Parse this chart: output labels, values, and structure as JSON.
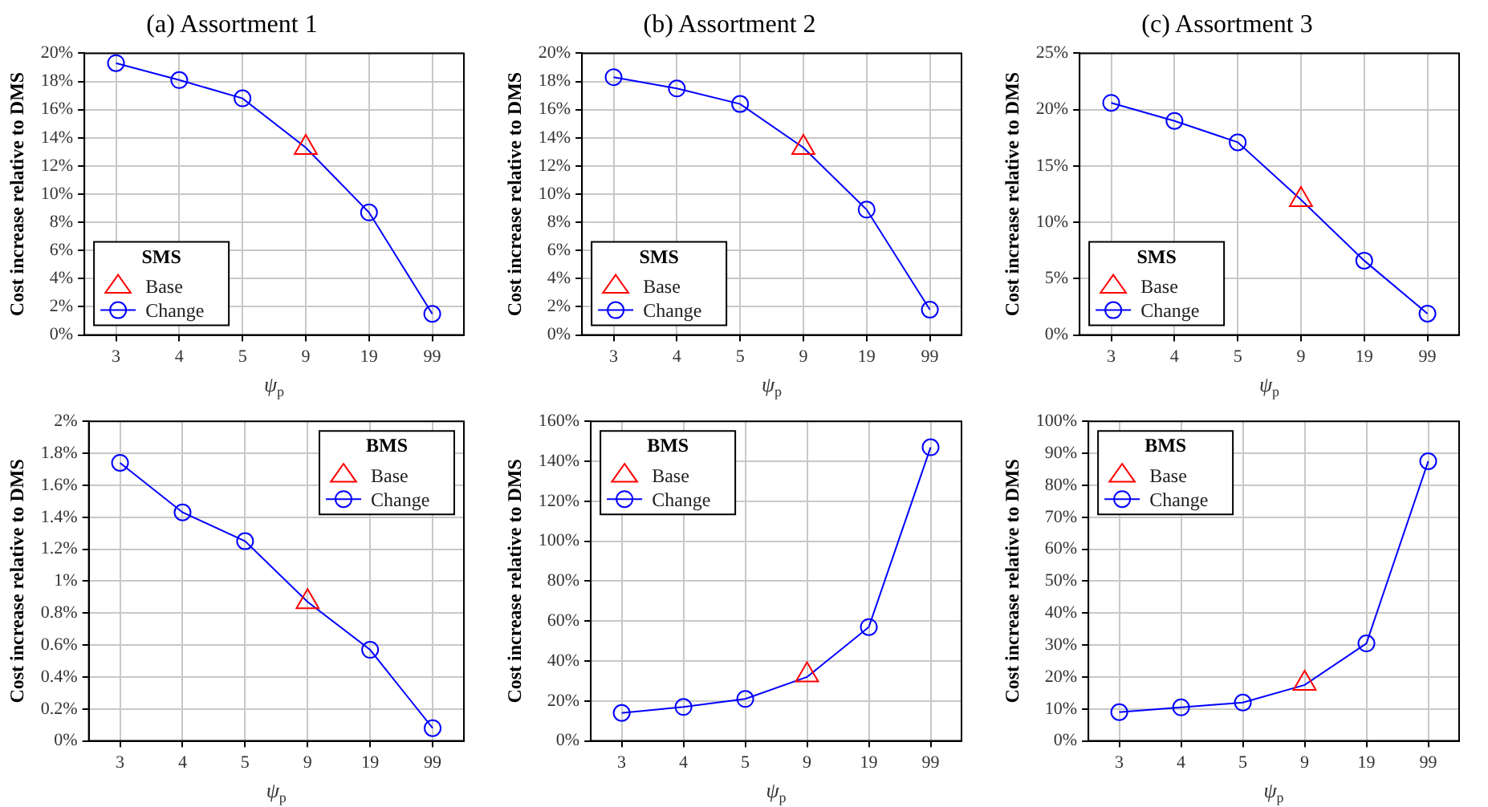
{
  "chart_data": [
    {
      "type": "line",
      "title": "(a) Assortment 1",
      "xlabel": "ψ$_{p}$",
      "ylabel": "Cost increase relative to DMS",
      "legend_title": "SMS",
      "legend": "bottom left",
      "grid": true,
      "categories": [
        "3",
        "4",
        "5",
        "9",
        "19",
        "99"
      ],
      "ylim": [
        0,
        20
      ],
      "yticks": [
        {
          "value": 0,
          "label": "0%"
        },
        {
          "value": 2,
          "label": "2%"
        },
        {
          "value": 4,
          "label": "4%"
        },
        {
          "value": 6,
          "label": "6%"
        },
        {
          "value": 8,
          "label": "8%"
        },
        {
          "value": 10,
          "label": "10%"
        },
        {
          "value": 12,
          "label": "12%"
        },
        {
          "value": 14,
          "label": "14%"
        },
        {
          "value": 16,
          "label": "16%"
        },
        {
          "value": 18,
          "label": "18%"
        },
        {
          "value": 20,
          "label": "20%"
        }
      ],
      "series": [
        {
          "name": "Base",
          "type": "scatter",
          "marker": "triangle",
          "color": "#ff0000",
          "values": [
            null,
            null,
            null,
            13.3,
            null,
            null
          ]
        },
        {
          "name": "Change",
          "type": "line",
          "marker": "circle",
          "color": "#0000ff",
          "values": [
            19.3,
            18.1,
            16.8,
            13.3,
            8.7,
            1.5
          ]
        }
      ]
    },
    {
      "type": "line",
      "title": "(b) Assortment 2",
      "xlabel": "ψ$_{p}$",
      "ylabel": "Cost increase relative to DMS",
      "legend_title": "SMS",
      "legend": "bottom left",
      "grid": true,
      "categories": [
        "3",
        "4",
        "5",
        "9",
        "19",
        "99"
      ],
      "ylim": [
        0,
        20
      ],
      "yticks": [
        {
          "value": 0,
          "label": "0%"
        },
        {
          "value": 2,
          "label": "2%"
        },
        {
          "value": 4,
          "label": "4%"
        },
        {
          "value": 6,
          "label": "6%"
        },
        {
          "value": 8,
          "label": "8%"
        },
        {
          "value": 10,
          "label": "10%"
        },
        {
          "value": 12,
          "label": "12%"
        },
        {
          "value": 14,
          "label": "14%"
        },
        {
          "value": 16,
          "label": "16%"
        },
        {
          "value": 18,
          "label": "18%"
        },
        {
          "value": 20,
          "label": "20%"
        }
      ],
      "series": [
        {
          "name": "Base",
          "type": "scatter",
          "marker": "triangle",
          "color": "#ff0000",
          "values": [
            null,
            null,
            null,
            13.3,
            null,
            null
          ]
        },
        {
          "name": "Change",
          "type": "line",
          "marker": "circle",
          "color": "#0000ff",
          "values": [
            18.3,
            17.5,
            16.4,
            13.3,
            8.9,
            1.8
          ]
        }
      ]
    },
    {
      "type": "line",
      "title": "(c) Assortment 3",
      "xlabel": "ψ$_{p}$",
      "ylabel": "Cost increase relative to DMS",
      "legend_title": "SMS",
      "legend": "bottom left",
      "grid": true,
      "categories": [
        "3",
        "4",
        "5",
        "9",
        "19",
        "99"
      ],
      "ylim": [
        0,
        25
      ],
      "yticks": [
        {
          "value": 0,
          "label": "0%"
        },
        {
          "value": 5,
          "label": "5%"
        },
        {
          "value": 10,
          "label": "10%"
        },
        {
          "value": 15,
          "label": "15%"
        },
        {
          "value": 20,
          "label": "20%"
        },
        {
          "value": 25,
          "label": "25%"
        }
      ],
      "series": [
        {
          "name": "Base",
          "type": "scatter",
          "marker": "triangle",
          "color": "#ff0000",
          "values": [
            null,
            null,
            null,
            12.0,
            null,
            null
          ]
        },
        {
          "name": "Change",
          "type": "line",
          "marker": "circle",
          "color": "#0000ff",
          "values": [
            20.6,
            19.0,
            17.1,
            12.0,
            6.6,
            1.9
          ]
        }
      ]
    },
    {
      "type": "line",
      "xlabel": "ψ$_{p}$",
      "ylabel": "Cost increase relative to DMS",
      "legend_title": "BMS",
      "legend": "top right",
      "grid": true,
      "categories": [
        "3",
        "4",
        "5",
        "9",
        "19",
        "99"
      ],
      "ylim": [
        0,
        2
      ],
      "yticks": [
        {
          "value": 0,
          "label": "0%"
        },
        {
          "value": 0.2,
          "label": "0.2%"
        },
        {
          "value": 0.4,
          "label": "0.4%"
        },
        {
          "value": 0.6,
          "label": "0.6%"
        },
        {
          "value": 0.8,
          "label": "0.8%"
        },
        {
          "value": 1,
          "label": "1%"
        },
        {
          "value": 1.2,
          "label": "1.2%"
        },
        {
          "value": 1.4,
          "label": "1.4%"
        },
        {
          "value": 1.6,
          "label": "1.6%"
        },
        {
          "value": 1.8,
          "label": "1.8%"
        },
        {
          "value": 2,
          "label": "2%"
        }
      ],
      "series": [
        {
          "name": "Base",
          "type": "scatter",
          "marker": "triangle",
          "color": "#ff0000",
          "values": [
            null,
            null,
            null,
            0.87,
            null,
            null
          ]
        },
        {
          "name": "Change",
          "type": "line",
          "marker": "circle",
          "color": "#0000ff",
          "values": [
            1.74,
            1.43,
            1.25,
            0.87,
            0.57,
            0.08
          ]
        }
      ]
    },
    {
      "type": "line",
      "xlabel": "ψ$_{p}$",
      "ylabel": "Cost increase relative to DMS",
      "legend_title": "BMS",
      "legend": "top left",
      "grid": true,
      "categories": [
        "3",
        "4",
        "5",
        "9",
        "19",
        "99"
      ],
      "ylim": [
        0,
        160
      ],
      "yticks": [
        {
          "value": 0,
          "label": "0%"
        },
        {
          "value": 20,
          "label": "20%"
        },
        {
          "value": 40,
          "label": "40%"
        },
        {
          "value": 60,
          "label": "60%"
        },
        {
          "value": 80,
          "label": "80%"
        },
        {
          "value": 100,
          "label": "100%"
        },
        {
          "value": 120,
          "label": "120%"
        },
        {
          "value": 140,
          "label": "140%"
        },
        {
          "value": 160,
          "label": "160%"
        }
      ],
      "series": [
        {
          "name": "Base",
          "type": "scatter",
          "marker": "triangle",
          "color": "#ff0000",
          "values": [
            null,
            null,
            null,
            33,
            null,
            null
          ]
        },
        {
          "name": "Change",
          "type": "line",
          "marker": "circle",
          "color": "#0000ff",
          "values": [
            14,
            17,
            21,
            32,
            57,
            147
          ]
        }
      ]
    },
    {
      "type": "line",
      "xlabel": "ψ$_{p}$",
      "ylabel": "Cost increase relative to DMS",
      "legend_title": "BMS",
      "legend": "top left",
      "grid": true,
      "categories": [
        "3",
        "4",
        "5",
        "9",
        "19",
        "99"
      ],
      "ylim": [
        0,
        100
      ],
      "yticks": [
        {
          "value": 0,
          "label": "0%"
        },
        {
          "value": 10,
          "label": "10%"
        },
        {
          "value": 20,
          "label": "20%"
        },
        {
          "value": 30,
          "label": "30%"
        },
        {
          "value": 40,
          "label": "40%"
        },
        {
          "value": 50,
          "label": "50%"
        },
        {
          "value": 60,
          "label": "60%"
        },
        {
          "value": 70,
          "label": "70%"
        },
        {
          "value": 80,
          "label": "80%"
        },
        {
          "value": 90,
          "label": "90%"
        },
        {
          "value": 100,
          "label": "100%"
        }
      ],
      "series": [
        {
          "name": "Base",
          "type": "scatter",
          "marker": "triangle",
          "color": "#ff0000",
          "values": [
            null,
            null,
            null,
            18,
            null,
            null
          ]
        },
        {
          "name": "Change",
          "type": "line",
          "marker": "circle",
          "color": "#0000ff",
          "values": [
            9,
            10.5,
            12,
            17.5,
            30.5,
            87.5
          ]
        }
      ]
    }
  ]
}
